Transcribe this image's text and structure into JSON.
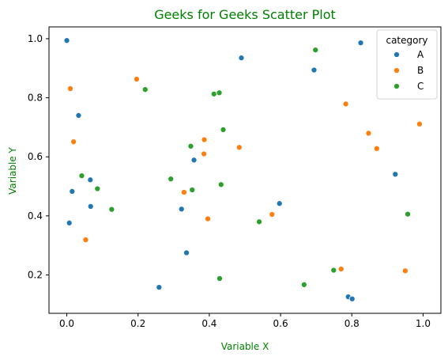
{
  "chart_data": {
    "type": "scatter",
    "title": "Geeks for Geeks Scatter Plot",
    "xlabel": "Variable X",
    "ylabel": "Variable Y",
    "xlim": [
      -0.05,
      1.05
    ],
    "ylim": [
      0.07,
      1.04
    ],
    "xticks": [
      {
        "value": 0.0,
        "label": "0.0"
      },
      {
        "value": 0.2,
        "label": "0.2"
      },
      {
        "value": 0.4,
        "label": "0.4"
      },
      {
        "value": 0.6,
        "label": "0.6"
      },
      {
        "value": 0.8,
        "label": "0.8"
      },
      {
        "value": 1.0,
        "label": "1.0"
      }
    ],
    "yticks": [
      {
        "value": 0.2,
        "label": "0.2"
      },
      {
        "value": 0.4,
        "label": "0.4"
      },
      {
        "value": 0.6,
        "label": "0.6"
      },
      {
        "value": 0.8,
        "label": "0.8"
      },
      {
        "value": 1.0,
        "label": "1.0"
      }
    ],
    "grid": false,
    "legend": {
      "title": "category",
      "position": "top-right"
    },
    "series": [
      {
        "name": "A",
        "color": "#1f77b4",
        "points": [
          {
            "x": 0.0,
            "y": 0.994
          },
          {
            "x": 0.007,
            "y": 0.376
          },
          {
            "x": 0.015,
            "y": 0.483
          },
          {
            "x": 0.033,
            "y": 0.74
          },
          {
            "x": 0.066,
            "y": 0.522
          },
          {
            "x": 0.067,
            "y": 0.432
          },
          {
            "x": 0.259,
            "y": 0.158
          },
          {
            "x": 0.322,
            "y": 0.423
          },
          {
            "x": 0.336,
            "y": 0.275
          },
          {
            "x": 0.357,
            "y": 0.589
          },
          {
            "x": 0.49,
            "y": 0.935
          },
          {
            "x": 0.597,
            "y": 0.442
          },
          {
            "x": 0.694,
            "y": 0.894
          },
          {
            "x": 0.79,
            "y": 0.126
          },
          {
            "x": 0.801,
            "y": 0.119
          },
          {
            "x": 0.825,
            "y": 0.986
          },
          {
            "x": 0.922,
            "y": 0.541
          }
        ]
      },
      {
        "name": "B",
        "color": "#ff7f0e",
        "points": [
          {
            "x": 0.01,
            "y": 0.831
          },
          {
            "x": 0.019,
            "y": 0.651
          },
          {
            "x": 0.053,
            "y": 0.319
          },
          {
            "x": 0.196,
            "y": 0.863
          },
          {
            "x": 0.329,
            "y": 0.48
          },
          {
            "x": 0.385,
            "y": 0.61
          },
          {
            "x": 0.386,
            "y": 0.658
          },
          {
            "x": 0.396,
            "y": 0.39
          },
          {
            "x": 0.484,
            "y": 0.632
          },
          {
            "x": 0.576,
            "y": 0.405
          },
          {
            "x": 0.77,
            "y": 0.22
          },
          {
            "x": 0.783,
            "y": 0.779
          },
          {
            "x": 0.847,
            "y": 0.68
          },
          {
            "x": 0.87,
            "y": 0.628
          },
          {
            "x": 0.95,
            "y": 0.214
          },
          {
            "x": 0.99,
            "y": 0.711
          }
        ]
      },
      {
        "name": "C",
        "color": "#2ca02c",
        "points": [
          {
            "x": 0.042,
            "y": 0.536
          },
          {
            "x": 0.086,
            "y": 0.492
          },
          {
            "x": 0.126,
            "y": 0.422
          },
          {
            "x": 0.22,
            "y": 0.828
          },
          {
            "x": 0.292,
            "y": 0.525
          },
          {
            "x": 0.348,
            "y": 0.636
          },
          {
            "x": 0.352,
            "y": 0.488
          },
          {
            "x": 0.413,
            "y": 0.813
          },
          {
            "x": 0.428,
            "y": 0.817
          },
          {
            "x": 0.429,
            "y": 0.188
          },
          {
            "x": 0.433,
            "y": 0.506
          },
          {
            "x": 0.439,
            "y": 0.692
          },
          {
            "x": 0.54,
            "y": 0.38
          },
          {
            "x": 0.666,
            "y": 0.167
          },
          {
            "x": 0.698,
            "y": 0.962
          },
          {
            "x": 0.749,
            "y": 0.216
          },
          {
            "x": 0.957,
            "y": 0.406
          }
        ]
      }
    ]
  }
}
